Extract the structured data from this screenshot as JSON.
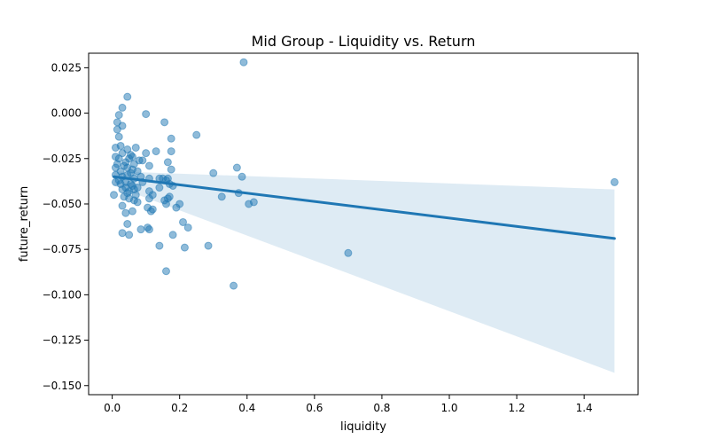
{
  "chart_data": {
    "type": "scatter",
    "title": "Mid Group - Liquidity vs. Return",
    "xlabel": "liquidity",
    "ylabel": "future_return",
    "xlim": [
      -0.07,
      1.56
    ],
    "ylim": [
      -0.155,
      0.033
    ],
    "xticks": [
      0.0,
      0.2,
      0.4,
      0.6,
      0.8,
      1.0,
      1.2,
      1.4
    ],
    "xtick_labels": [
      "0.0",
      "0.2",
      "0.4",
      "0.6",
      "0.8",
      "1.0",
      "1.2",
      "1.4"
    ],
    "yticks": [
      0.025,
      0.0,
      -0.025,
      -0.05,
      -0.075,
      -0.1,
      -0.125,
      -0.15
    ],
    "ytick_labels": [
      "0.025",
      "0.000",
      "−0.025",
      "−0.050",
      "−0.075",
      "−0.100",
      "−0.125",
      "−0.150"
    ],
    "grid": false,
    "colors": {
      "points": "#1f77b4",
      "line": "#1f77b4",
      "band": "#1f77b4"
    },
    "regression": {
      "x": [
        0.005,
        1.49
      ],
      "y": [
        -0.035,
        -0.069
      ],
      "ci_upper": [
        -0.032,
        -0.042
      ],
      "ci_lower": [
        -0.04,
        -0.143
      ]
    },
    "points": [
      [
        0.39,
        0.028
      ],
      [
        0.045,
        0.009
      ],
      [
        0.03,
        0.003
      ],
      [
        0.1,
        -0.0005
      ],
      [
        0.02,
        -0.001
      ],
      [
        0.015,
        -0.005
      ],
      [
        0.155,
        -0.005
      ],
      [
        0.03,
        -0.007
      ],
      [
        0.015,
        -0.009
      ],
      [
        0.02,
        -0.013
      ],
      [
        0.25,
        -0.012
      ],
      [
        0.175,
        -0.014
      ],
      [
        0.01,
        -0.019
      ],
      [
        0.025,
        -0.018
      ],
      [
        0.07,
        -0.019
      ],
      [
        0.045,
        -0.02
      ],
      [
        0.13,
        -0.021
      ],
      [
        0.175,
        -0.021
      ],
      [
        0.01,
        -0.024
      ],
      [
        0.03,
        -0.022
      ],
      [
        0.055,
        -0.023
      ],
      [
        0.05,
        -0.025
      ],
      [
        0.06,
        -0.024
      ],
      [
        0.1,
        -0.022
      ],
      [
        0.02,
        -0.025
      ],
      [
        0.08,
        -0.026
      ],
      [
        0.04,
        -0.027
      ],
      [
        0.165,
        -0.027
      ],
      [
        0.09,
        -0.026
      ],
      [
        0.015,
        -0.028
      ],
      [
        0.035,
        -0.029
      ],
      [
        0.065,
        -0.028
      ],
      [
        0.11,
        -0.029
      ],
      [
        0.06,
        -0.031
      ],
      [
        0.025,
        -0.032
      ],
      [
        0.045,
        -0.03
      ],
      [
        0.175,
        -0.031
      ],
      [
        0.3,
        -0.033
      ],
      [
        0.37,
        -0.03
      ],
      [
        0.075,
        -0.032
      ],
      [
        0.01,
        -0.03
      ],
      [
        0.055,
        -0.033
      ],
      [
        0.01,
        -0.034
      ],
      [
        0.03,
        -0.035
      ],
      [
        0.045,
        -0.034
      ],
      [
        0.065,
        -0.036
      ],
      [
        0.085,
        -0.035
      ],
      [
        0.11,
        -0.036
      ],
      [
        0.14,
        -0.036
      ],
      [
        0.16,
        -0.037
      ],
      [
        0.385,
        -0.035
      ],
      [
        0.02,
        -0.037
      ],
      [
        0.04,
        -0.038
      ],
      [
        0.055,
        -0.039
      ],
      [
        0.09,
        -0.038
      ],
      [
        0.15,
        -0.036
      ],
      [
        0.165,
        -0.036
      ],
      [
        0.01,
        -0.038
      ],
      [
        0.025,
        -0.039
      ],
      [
        0.06,
        -0.04
      ],
      [
        0.17,
        -0.039
      ],
      [
        0.18,
        -0.04
      ],
      [
        0.04,
        -0.041
      ],
      [
        0.075,
        -0.041
      ],
      [
        0.14,
        -0.041
      ],
      [
        0.03,
        -0.042
      ],
      [
        0.05,
        -0.043
      ],
      [
        0.065,
        -0.042
      ],
      [
        0.11,
        -0.043
      ],
      [
        0.375,
        -0.044
      ],
      [
        0.045,
        -0.044
      ],
      [
        0.07,
        -0.045
      ],
      [
        0.005,
        -0.045
      ],
      [
        0.035,
        -0.046
      ],
      [
        0.12,
        -0.045
      ],
      [
        0.05,
        -0.047
      ],
      [
        0.17,
        -0.046
      ],
      [
        0.11,
        -0.047
      ],
      [
        0.155,
        -0.048
      ],
      [
        0.165,
        -0.047
      ],
      [
        0.325,
        -0.046
      ],
      [
        0.065,
        -0.048
      ],
      [
        0.075,
        -0.049
      ],
      [
        0.42,
        -0.049
      ],
      [
        0.405,
        -0.05
      ],
      [
        0.16,
        -0.05
      ],
      [
        0.2,
        -0.05
      ],
      [
        0.03,
        -0.051
      ],
      [
        0.105,
        -0.052
      ],
      [
        0.19,
        -0.052
      ],
      [
        0.12,
        -0.053
      ],
      [
        0.06,
        -0.054
      ],
      [
        0.115,
        -0.054
      ],
      [
        0.04,
        -0.055
      ],
      [
        0.045,
        -0.061
      ],
      [
        0.21,
        -0.06
      ],
      [
        0.225,
        -0.063
      ],
      [
        0.105,
        -0.063
      ],
      [
        0.11,
        -0.064
      ],
      [
        0.085,
        -0.064
      ],
      [
        0.03,
        -0.066
      ],
      [
        0.05,
        -0.067
      ],
      [
        0.18,
        -0.067
      ],
      [
        0.14,
        -0.073
      ],
      [
        0.285,
        -0.073
      ],
      [
        0.215,
        -0.074
      ],
      [
        0.7,
        -0.077
      ],
      [
        0.16,
        -0.087
      ],
      [
        0.36,
        -0.095
      ],
      [
        1.49,
        -0.038
      ]
    ]
  }
}
